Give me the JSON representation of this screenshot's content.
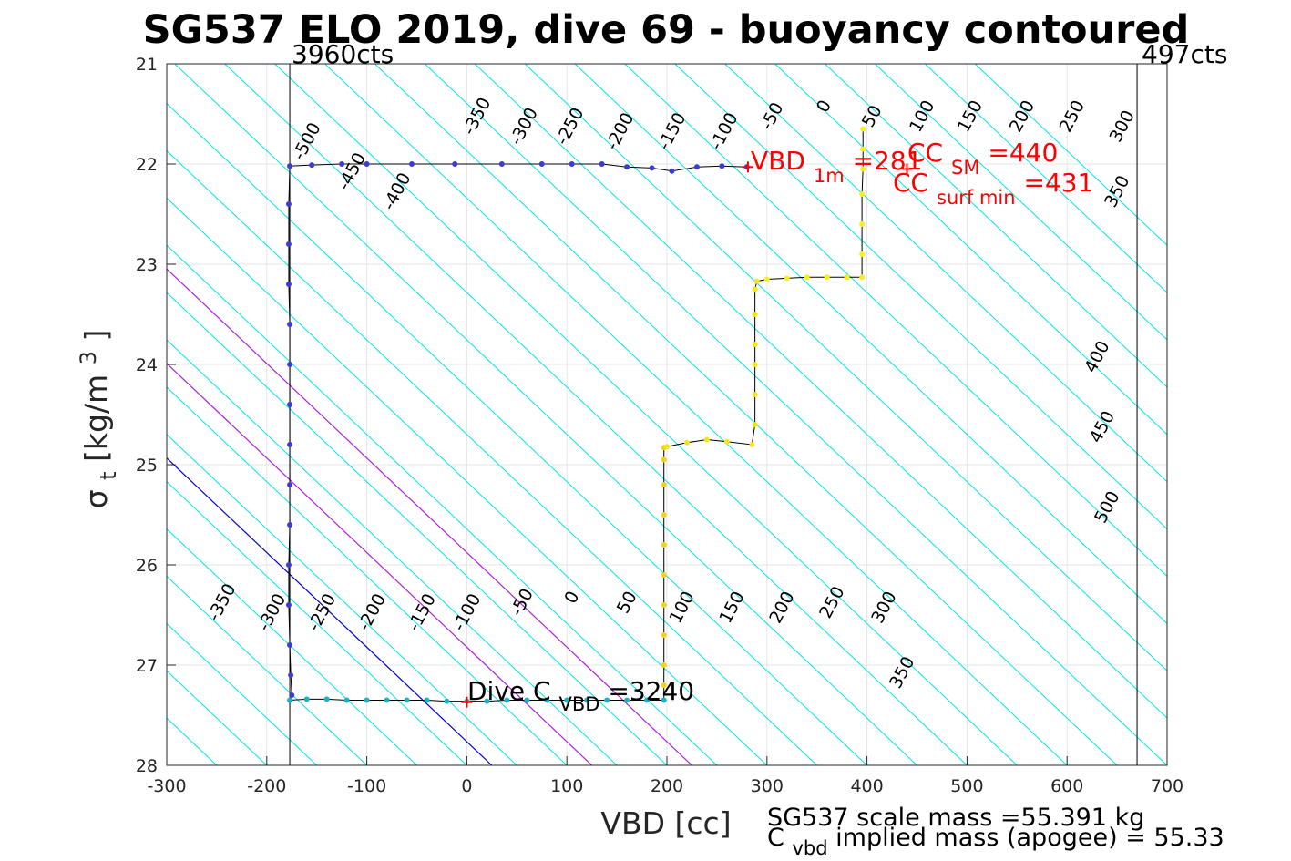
{
  "chart_data": {
    "type": "scatter",
    "title": "SG537 ELO 2019, dive 69 - buoyancy contoured",
    "xlabel": "VBD [cc]",
    "ylabel": {
      "main": "σ",
      "sub": "t",
      "unit_pre": " [kg/m",
      "unit_sup": "3",
      "unit_post": "]"
    },
    "xlim": [
      -300,
      700
    ],
    "ylim": [
      21,
      28
    ],
    "y_reversed": true,
    "grid": true,
    "xticks": [
      -300,
      -200,
      -100,
      0,
      100,
      200,
      300,
      400,
      500,
      600,
      700
    ],
    "yticks": [
      21,
      22,
      23,
      24,
      25,
      26,
      27,
      28
    ],
    "xtick_labels": [
      "-300",
      "-200",
      "-100",
      "0",
      "100",
      "200",
      "300",
      "400",
      "500",
      "600",
      "700"
    ],
    "ytick_labels": [
      "21",
      "22",
      "23",
      "24",
      "25",
      "26",
      "27",
      "28"
    ],
    "contour_slope_cc_per_sigma": 106,
    "contour_levels": [
      -500,
      -450,
      -400,
      -350,
      -300,
      -250,
      -200,
      -150,
      -100,
      -50,
      0,
      50,
      100,
      150,
      200,
      250,
      300,
      350,
      400,
      450,
      500
    ],
    "contour_label_sets": [
      {
        "row": "upper",
        "labels": [
          {
            "text": "-500",
            "x": -155,
            "y": 21.8
          },
          {
            "text": "-450",
            "x": -110,
            "y": 22.1
          },
          {
            "text": "-400",
            "x": -65,
            "y": 22.3
          },
          {
            "text": "-350",
            "x": 15,
            "y": 21.55
          },
          {
            "text": "-300",
            "x": 62,
            "y": 21.65
          },
          {
            "text": "-250",
            "x": 108,
            "y": 21.65
          },
          {
            "text": "-200",
            "x": 158,
            "y": 21.7
          },
          {
            "text": "-150",
            "x": 210,
            "y": 21.7
          },
          {
            "text": "-100",
            "x": 262,
            "y": 21.7
          },
          {
            "text": "-50",
            "x": 310,
            "y": 21.55
          },
          {
            "text": "0",
            "x": 362,
            "y": 21.45
          },
          {
            "text": "50",
            "x": 410,
            "y": 21.55
          },
          {
            "text": "100",
            "x": 460,
            "y": 21.55
          },
          {
            "text": "150",
            "x": 508,
            "y": 21.55
          },
          {
            "text": "200",
            "x": 560,
            "y": 21.55
          },
          {
            "text": "250",
            "x": 610,
            "y": 21.55
          },
          {
            "text": "300",
            "x": 660,
            "y": 21.65
          },
          {
            "text": "350",
            "x": 655,
            "y": 22.3
          }
        ]
      },
      {
        "row": "lower",
        "labels": [
          {
            "text": "-350",
            "x": -240,
            "y": 26.4
          },
          {
            "text": "-300",
            "x": -190,
            "y": 26.5
          },
          {
            "text": "-250",
            "x": -140,
            "y": 26.5
          },
          {
            "text": "-200",
            "x": -90,
            "y": 26.5
          },
          {
            "text": "-150",
            "x": -40,
            "y": 26.5
          },
          {
            "text": "-100",
            "x": 5,
            "y": 26.5
          },
          {
            "text": "-50",
            "x": 60,
            "y": 26.4
          },
          {
            "text": "0",
            "x": 110,
            "y": 26.35
          },
          {
            "text": "50",
            "x": 165,
            "y": 26.4
          },
          {
            "text": "100",
            "x": 220,
            "y": 26.45
          },
          {
            "text": "150",
            "x": 270,
            "y": 26.45
          },
          {
            "text": "200",
            "x": 320,
            "y": 26.45
          },
          {
            "text": "250",
            "x": 370,
            "y": 26.4
          },
          {
            "text": "300",
            "x": 422,
            "y": 26.45
          },
          {
            "text": "350",
            "x": 440,
            "y": 27.1
          }
        ]
      },
      {
        "row": "right",
        "labels": [
          {
            "text": "400",
            "x": 635,
            "y": 23.95
          },
          {
            "text": "450",
            "x": 640,
            "y": 24.65
          },
          {
            "text": "500",
            "x": 645,
            "y": 25.45
          }
        ]
      }
    ],
    "reference_lines": [
      {
        "kind": "contour",
        "level": 0,
        "color": "#0000d0",
        "x0": 25,
        "y0": 28,
        "slope": 106
      },
      {
        "kind": "contour",
        "level": 100,
        "color": "#b020d8",
        "x0": 125,
        "y0": 28,
        "slope": 106
      },
      {
        "kind": "contour",
        "level": 200,
        "color": "#b020d8",
        "x0": 225,
        "y0": 28,
        "slope": 106
      }
    ],
    "vertical_lines": [
      {
        "x": -177,
        "label": "3960cts"
      },
      {
        "x": 670,
        "label": "497cts"
      }
    ],
    "series": [
      {
        "segment": "dive_bottom",
        "color": "#1ab4c4",
        "points": [
          [
            -177,
            27.35
          ],
          [
            -160,
            27.34
          ],
          [
            -140,
            27.34
          ],
          [
            -120,
            27.35
          ],
          [
            -100,
            27.35
          ],
          [
            -80,
            27.35
          ],
          [
            -60,
            27.35
          ],
          [
            -40,
            27.35
          ],
          [
            -20,
            27.36
          ],
          [
            0,
            27.36
          ],
          [
            20,
            27.36
          ],
          [
            40,
            27.35
          ],
          [
            60,
            27.35
          ],
          [
            80,
            27.35
          ],
          [
            100,
            27.35
          ],
          [
            120,
            27.35
          ],
          [
            140,
            27.35
          ],
          [
            160,
            27.35
          ],
          [
            180,
            27.35
          ],
          [
            197,
            27.35
          ]
        ]
      },
      {
        "segment": "climb_vertical_1",
        "color": "#f2d21c",
        "points": [
          [
            197,
            27.2
          ],
          [
            197,
            27.0
          ],
          [
            197,
            26.7
          ],
          [
            197,
            26.4
          ],
          [
            197,
            26.1
          ],
          [
            197,
            25.8
          ],
          [
            197,
            25.5
          ],
          [
            197,
            25.2
          ],
          [
            197,
            24.95
          ],
          [
            197,
            24.83
          ]
        ]
      },
      {
        "segment": "climb_step_1",
        "color": "#f5e61a",
        "points": [
          [
            200,
            24.82
          ],
          [
            220,
            24.78
          ],
          [
            240,
            24.75
          ],
          [
            260,
            24.77
          ],
          [
            285,
            24.8
          ]
        ]
      },
      {
        "segment": "climb_vertical_2",
        "color": "#f5e61a",
        "points": [
          [
            288,
            24.6
          ],
          [
            288,
            24.3
          ],
          [
            288,
            24.0
          ],
          [
            288,
            23.8
          ],
          [
            288,
            23.5
          ],
          [
            288,
            23.25
          ],
          [
            290,
            23.17
          ]
        ]
      },
      {
        "segment": "climb_step_2",
        "color": "#f8f018",
        "points": [
          [
            300,
            23.15
          ],
          [
            320,
            23.14
          ],
          [
            340,
            23.13
          ],
          [
            360,
            23.13
          ],
          [
            380,
            23.13
          ],
          [
            395,
            23.13
          ]
        ]
      },
      {
        "segment": "climb_vertical_3",
        "color": "#f8f018",
        "points": [
          [
            395,
            22.9
          ],
          [
            395,
            22.6
          ],
          [
            395,
            22.3
          ],
          [
            396,
            22.05
          ],
          [
            396,
            21.85
          ],
          [
            396,
            21.65
          ]
        ]
      },
      {
        "segment": "surface_track",
        "color": "#3c3cd4",
        "points": [
          [
            -177,
            22.02
          ],
          [
            -155,
            22.01
          ],
          [
            -125,
            22.0
          ],
          [
            -100,
            22.0
          ],
          [
            -55,
            22.0
          ],
          [
            -12,
            22.0
          ],
          [
            35,
            22.0
          ],
          [
            75,
            22.0
          ],
          [
            105,
            22.0
          ],
          [
            135,
            22.0
          ],
          [
            160,
            22.03
          ],
          [
            185,
            22.04
          ],
          [
            205,
            22.07
          ],
          [
            230,
            22.03
          ],
          [
            255,
            22.02
          ],
          [
            280,
            22.03
          ]
        ]
      },
      {
        "segment": "dive_descent",
        "color": "#3c3cd4",
        "points": [
          [
            -178,
            22.4
          ],
          [
            -178,
            22.8
          ],
          [
            -178,
            23.2
          ],
          [
            -177,
            23.6
          ],
          [
            -177,
            24.0
          ],
          [
            -177,
            24.4
          ],
          [
            -177,
            24.8
          ],
          [
            -177,
            25.2
          ],
          [
            -177,
            25.6
          ],
          [
            -178,
            26.0
          ],
          [
            -178,
            26.4
          ],
          [
            -177,
            26.8
          ],
          [
            -176,
            27.1
          ],
          [
            -175,
            27.3
          ]
        ]
      }
    ],
    "markers": [
      {
        "name": "Dive C_VBD",
        "x": 0,
        "y": 27.37,
        "color": "#ff0000"
      },
      {
        "name": "VBD_1m",
        "x": 281,
        "y": 22.03,
        "color": "#ff0000"
      },
      {
        "name": "CC_SM",
        "x": 440,
        "y": 22.05,
        "color": "#ff0000"
      }
    ],
    "annotations": {
      "dive_cvbd": {
        "pre": "Dive C",
        "sub": "VBD",
        "post": "=3240"
      },
      "vbd_1m": {
        "pre": "VBD",
        "sub": "1m",
        "post": "=281"
      },
      "cc_sm": {
        "pre": "CC",
        "sub": "SM",
        "post": "=440"
      },
      "cc_surf": {
        "pre": "CC",
        "sub": "surf min",
        "post": "=431"
      }
    }
  },
  "footer": {
    "scale_mass": "SG537 scale mass =55.391 kg",
    "implied_pre": "C",
    "implied_sub": "vbd",
    "implied_post": " implied mass (apogee) = 55.33"
  }
}
